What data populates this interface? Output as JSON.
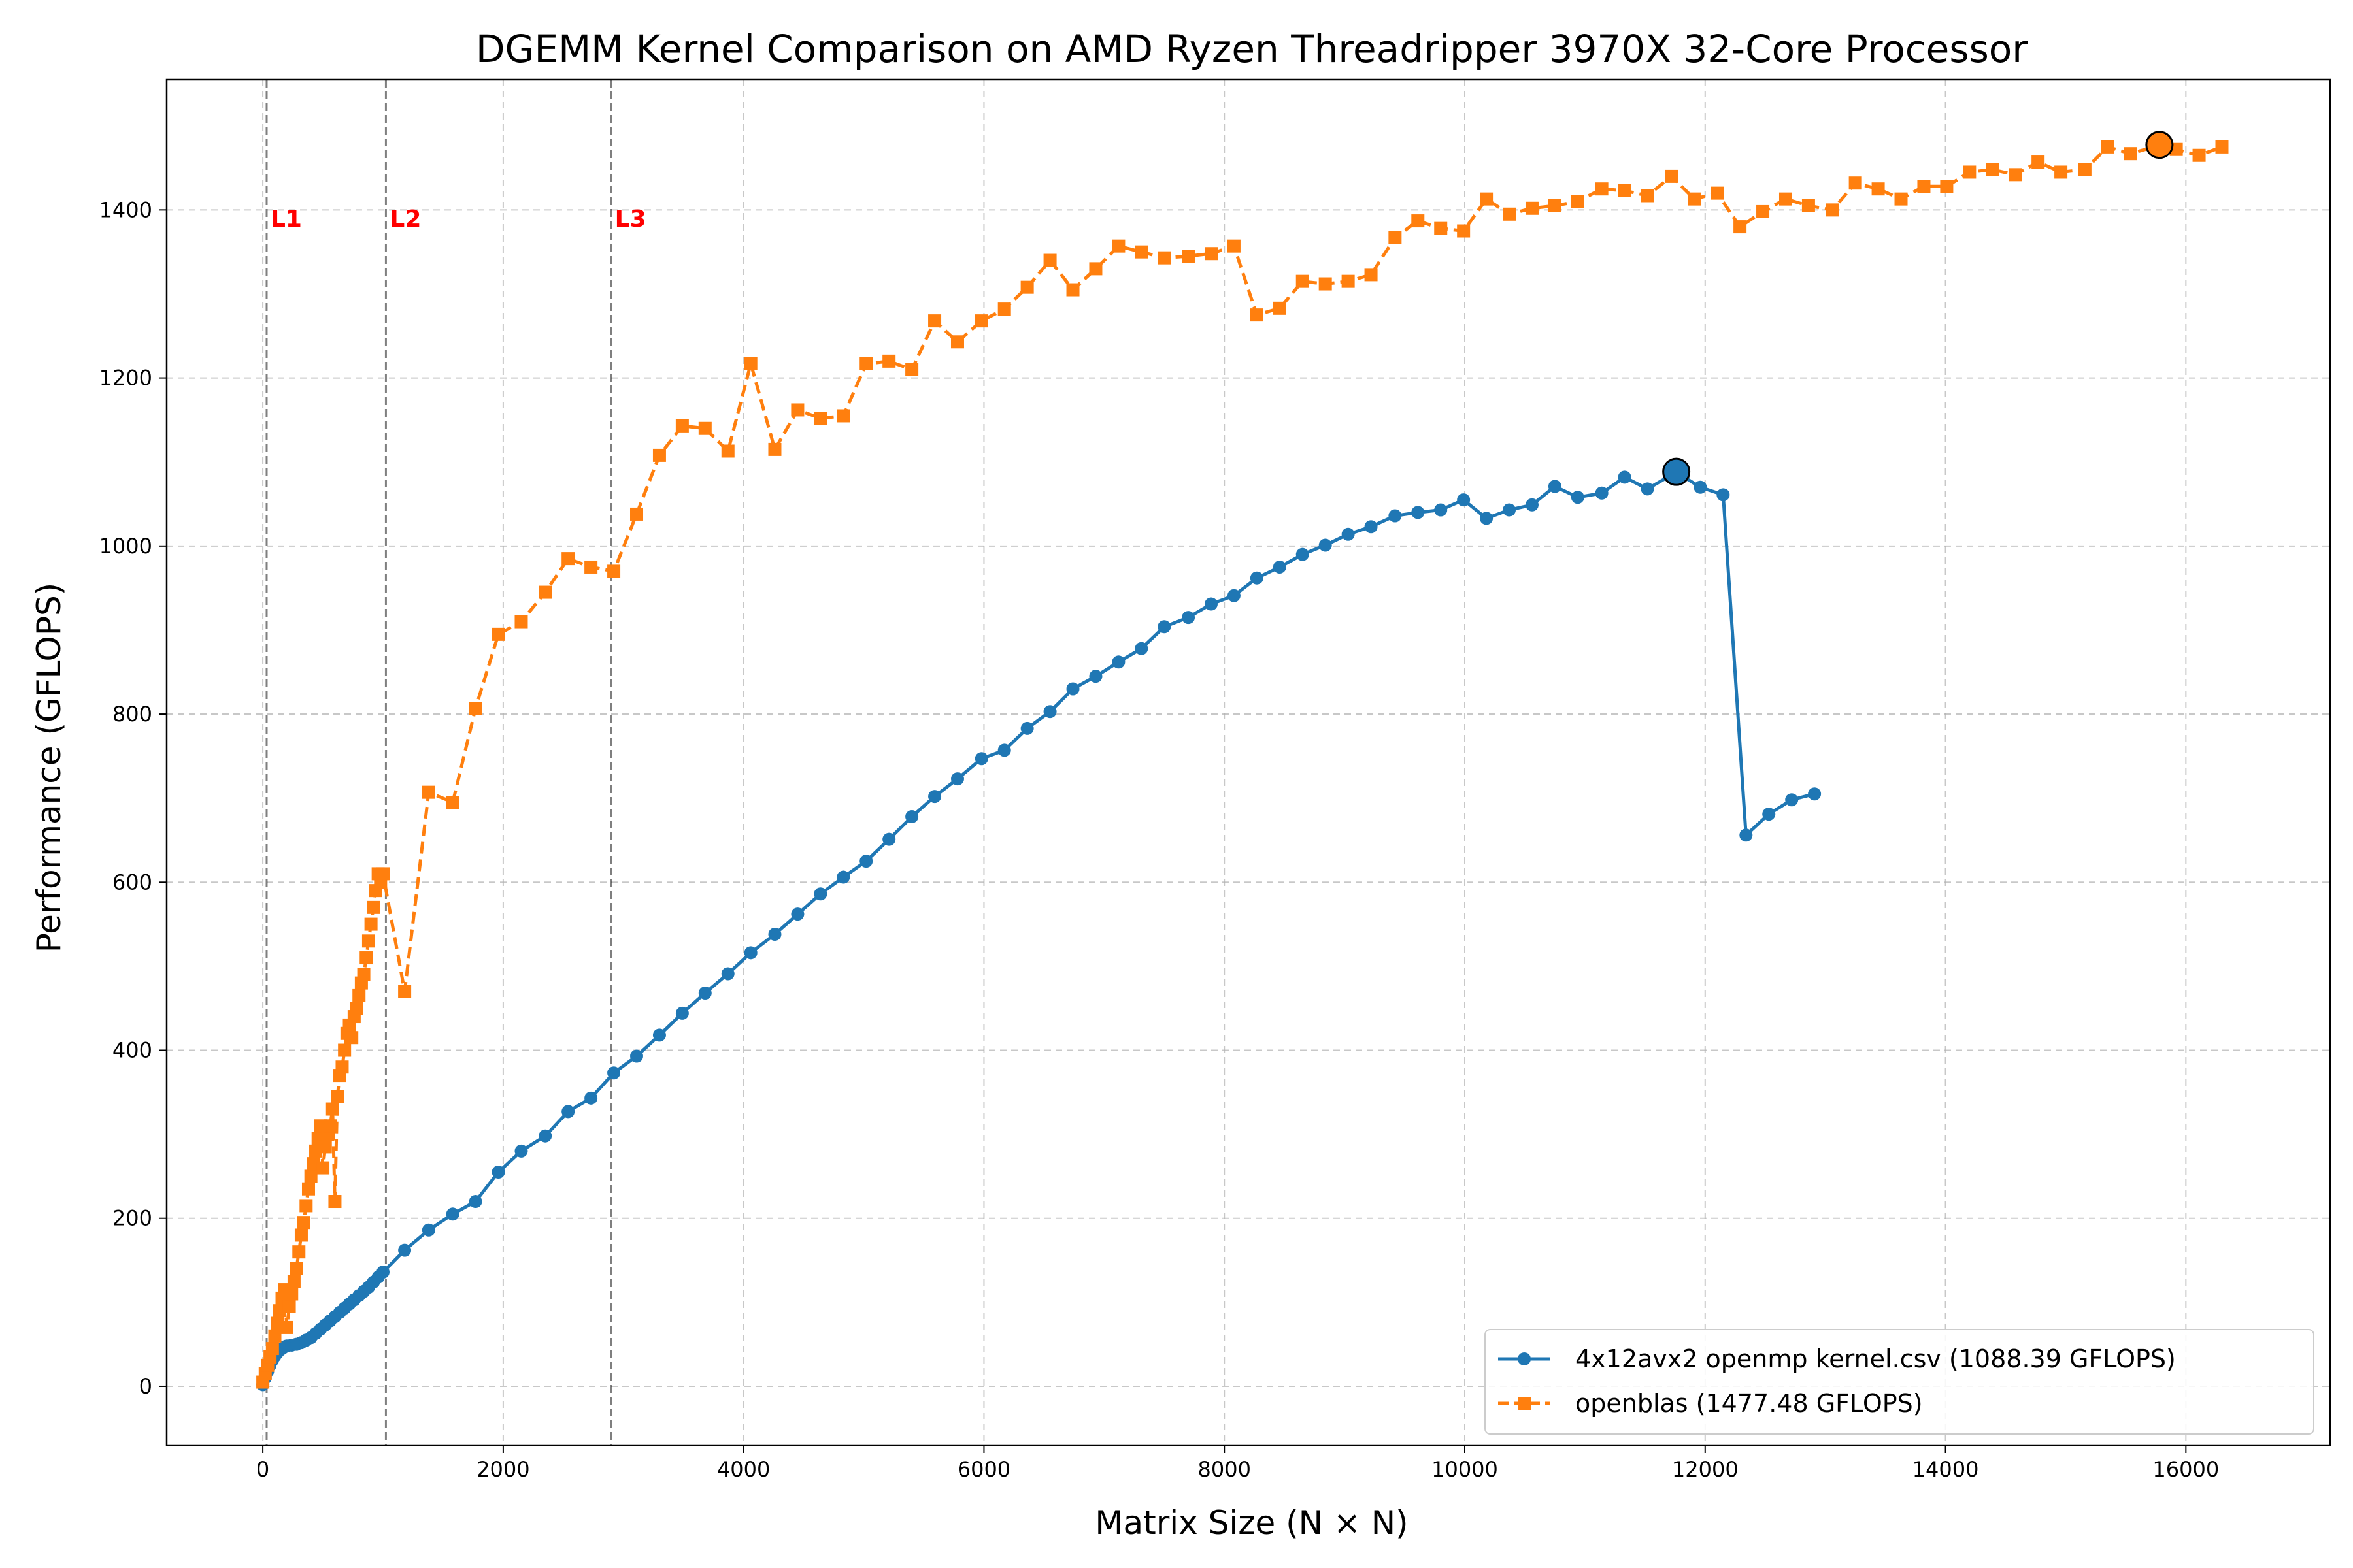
{
  "chart_data": {
    "type": "line",
    "title": "DGEMM Kernel Comparison on AMD Ryzen Threadripper 3970X 32-Core Processor",
    "xlabel": "Matrix Size (N × N)",
    "ylabel": "Performance (GFLOPS)",
    "xlim": [
      -800,
      17200
    ],
    "ylim": [
      -70,
      1555
    ],
    "xticks": [
      0,
      2000,
      4000,
      6000,
      8000,
      10000,
      12000,
      14000,
      16000
    ],
    "yticks": [
      0,
      200,
      400,
      600,
      800,
      1000,
      1200,
      1400
    ],
    "grid": true,
    "legend_position": "lower-right",
    "cache_lines": [
      {
        "label": "L1",
        "x": 32
      },
      {
        "label": "L2",
        "x": 1024
      },
      {
        "label": "L3",
        "x": 2896
      }
    ],
    "series": [
      {
        "name": "4x12avx2 openmp kernel.csv (1088.39 GFLOPS)",
        "color": "#1f77b4",
        "style": "solid",
        "marker": "circle",
        "peak": {
          "x": 11760,
          "y": 1088.39
        },
        "x": [
          0,
          20,
          40,
          60,
          80,
          100,
          120,
          140,
          160,
          180,
          200,
          240,
          280,
          320,
          360,
          400,
          440,
          480,
          520,
          560,
          600,
          640,
          680,
          720,
          760,
          800,
          840,
          880,
          920,
          960,
          1000,
          1180,
          1380,
          1580,
          1770,
          1960,
          2150,
          2350,
          2540,
          2730,
          2920,
          3110,
          3300,
          3490,
          3680,
          3870,
          4060,
          4260,
          4450,
          4640,
          4830,
          5020,
          5210,
          5400,
          5590,
          5780,
          5980,
          6170,
          6360,
          6550,
          6740,
          6930,
          7120,
          7310,
          7500,
          7700,
          7890,
          8080,
          8270,
          8460,
          8650,
          8840,
          9030,
          9220,
          9420,
          9610,
          9800,
          9990,
          10180,
          10370,
          10560,
          10750,
          10940,
          11140,
          11330,
          11520,
          11760,
          11960,
          12150,
          12340,
          12530,
          12720,
          12910
        ],
        "y": [
          2,
          10,
          18,
          25,
          31,
          36,
          40,
          43,
          45,
          47,
          48,
          49,
          50,
          52,
          55,
          58,
          63,
          68,
          73,
          78,
          83,
          88,
          93,
          98,
          103,
          108,
          113,
          118,
          124,
          130,
          136,
          162,
          186,
          205,
          220,
          255,
          280,
          298,
          327,
          343,
          373,
          393,
          418,
          444,
          468,
          491,
          516,
          538,
          562,
          586,
          606,
          625,
          651,
          678,
          702,
          723,
          747,
          757,
          783,
          803,
          830,
          845,
          862,
          878,
          904,
          915,
          931,
          941,
          962,
          975,
          990,
          1001,
          1014,
          1023,
          1036,
          1040,
          1043,
          1055,
          1033,
          1043,
          1049,
          1071,
          1058,
          1063,
          1082,
          1068,
          1088,
          1070,
          1061,
          656,
          681,
          698,
          705
        ]
      },
      {
        "name": "openblas (1477.48 GFLOPS)",
        "color": "#ff7f0e",
        "style": "dashed",
        "marker": "square",
        "peak": {
          "x": 15780,
          "y": 1477.48
        },
        "x": [
          0,
          20,
          40,
          60,
          80,
          100,
          120,
          140,
          160,
          180,
          200,
          220,
          240,
          260,
          280,
          300,
          320,
          340,
          360,
          380,
          400,
          420,
          440,
          460,
          480,
          500,
          520,
          540,
          560,
          580,
          600,
          620,
          640,
          660,
          680,
          700,
          720,
          740,
          760,
          780,
          800,
          820,
          840,
          860,
          880,
          900,
          920,
          940,
          960,
          980,
          1000,
          1180,
          1380,
          1580,
          1770,
          1960,
          2150,
          2350,
          2540,
          2730,
          2920,
          3110,
          3300,
          3490,
          3680,
          3870,
          4060,
          4260,
          4450,
          4640,
          4830,
          5020,
          5210,
          5400,
          5590,
          5780,
          5980,
          6170,
          6360,
          6550,
          6740,
          6930,
          7120,
          7310,
          7500,
          7700,
          7890,
          8080,
          8270,
          8460,
          8650,
          8840,
          9030,
          9220,
          9420,
          9610,
          9800,
          9990,
          10180,
          10370,
          10560,
          10750,
          10940,
          11140,
          11330,
          11520,
          11720,
          11910,
          12100,
          12290,
          12480,
          12670,
          12860,
          13060,
          13250,
          13440,
          13630,
          13820,
          14010,
          14200,
          14390,
          14580,
          14770,
          14960,
          15160,
          15350,
          15540,
          15780,
          15920,
          16110,
          16300
        ],
        "y": [
          5,
          15,
          25,
          35,
          45,
          60,
          75,
          90,
          105,
          115,
          70,
          95,
          110,
          125,
          140,
          160,
          180,
          195,
          215,
          235,
          250,
          265,
          280,
          295,
          310,
          260,
          285,
          300,
          310,
          330,
          220,
          345,
          370,
          380,
          400,
          420,
          430,
          415,
          440,
          450,
          465,
          480,
          490,
          510,
          530,
          550,
          570,
          590,
          610,
          600,
          610,
          470,
          707,
          695,
          807,
          895,
          910,
          945,
          985,
          975,
          970,
          1038,
          1108,
          1143,
          1140,
          1113,
          1217,
          1115,
          1162,
          1152,
          1155,
          1217,
          1220,
          1210,
          1268,
          1243,
          1268,
          1282,
          1308,
          1340,
          1305,
          1330,
          1357,
          1350,
          1343,
          1345,
          1348,
          1357,
          1275,
          1283,
          1315,
          1312,
          1315,
          1323,
          1367,
          1387,
          1378,
          1375,
          1413,
          1395,
          1402,
          1405,
          1410,
          1425,
          1423,
          1417,
          1440,
          1413,
          1420,
          1380,
          1398,
          1413,
          1405,
          1400,
          1432,
          1425,
          1413,
          1428,
          1428,
          1445,
          1448,
          1442,
          1457,
          1445,
          1448,
          1475,
          1467,
          1477,
          1472,
          1465,
          1475
        ]
      }
    ]
  }
}
